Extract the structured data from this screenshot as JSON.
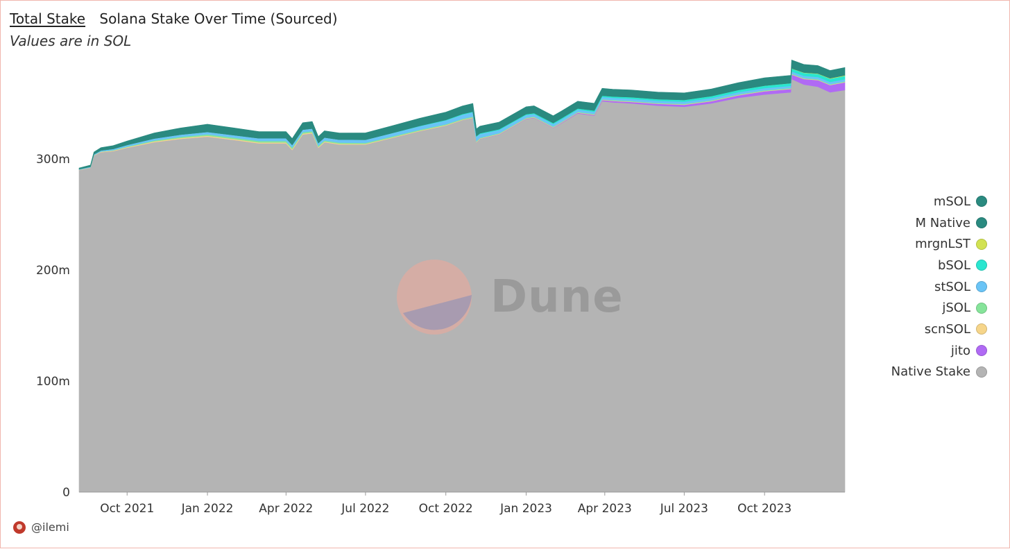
{
  "header": {
    "title": "Total Stake",
    "subtitle_inline": "Solana Stake Over Time (Sourced)",
    "note": "Values are in SOL"
  },
  "watermark": {
    "text": "Dune"
  },
  "footer": {
    "user": "@ilemi"
  },
  "chart_data": {
    "type": "area",
    "stacked": true,
    "ylim": [
      0,
      380
    ],
    "y_unit": "m SOL",
    "y_ticks": [
      0,
      100,
      200,
      300
    ],
    "y_tick_labels": [
      "0",
      "100m",
      "200m",
      "300m"
    ],
    "xlim": [
      "2021-08-07",
      "2024-01-01"
    ],
    "x_ticks": [
      "2021-10-01",
      "2022-01-01",
      "2022-04-01",
      "2022-07-01",
      "2022-10-01",
      "2023-01-01",
      "2023-04-01",
      "2023-07-01",
      "2023-10-01"
    ],
    "x_tick_labels": [
      "Oct 2021",
      "Jan 2022",
      "Apr 2022",
      "Jul 2022",
      "Oct 2022",
      "Jan 2023",
      "Apr 2023",
      "Jul 2023",
      "Oct 2023"
    ],
    "legend_position": "right",
    "x": [
      "2021-08-07",
      "2021-08-20",
      "2021-08-24",
      "2021-09-01",
      "2021-09-15",
      "2021-10-01",
      "2021-11-01",
      "2021-12-01",
      "2022-01-01",
      "2022-02-01",
      "2022-03-01",
      "2022-04-01",
      "2022-04-08",
      "2022-04-20",
      "2022-05-01",
      "2022-05-08",
      "2022-05-15",
      "2022-06-01",
      "2022-07-01",
      "2022-08-01",
      "2022-09-01",
      "2022-10-01",
      "2022-10-20",
      "2022-11-01",
      "2022-11-05",
      "2022-11-09",
      "2022-12-01",
      "2023-01-01",
      "2023-01-10",
      "2023-02-01",
      "2023-02-10",
      "2023-03-01",
      "2023-03-20",
      "2023-03-29",
      "2023-04-10",
      "2023-05-01",
      "2023-06-01",
      "2023-07-01",
      "2023-08-01",
      "2023-09-01",
      "2023-10-01",
      "2023-10-31",
      "2023-11-01",
      "2023-11-15",
      "2023-12-01",
      "2023-12-15",
      "2024-01-01"
    ],
    "series": [
      {
        "name": "Native Stake",
        "color": "#b4b4b4",
        "values": [
          290,
          292,
          303,
          306,
          307,
          310,
          315,
          318,
          320,
          317,
          314,
          314,
          308,
          322,
          323,
          310,
          315,
          313,
          313,
          319,
          325,
          330,
          335,
          337,
          315,
          318,
          322,
          336,
          337,
          328,
          332,
          341,
          339,
          352,
          351,
          350,
          348,
          347,
          350,
          355,
          358,
          360,
          372,
          367,
          365,
          360,
          362
        ]
      },
      {
        "name": "jito",
        "color": "#b06af4",
        "values": [
          0,
          0,
          0,
          0,
          0,
          0,
          0,
          0,
          0,
          0,
          0,
          0,
          0,
          0,
          0,
          0,
          0,
          0,
          0,
          0,
          0,
          0,
          0,
          0,
          0,
          0.1,
          0.2,
          0.3,
          0.3,
          0.4,
          0.5,
          0.6,
          0.7,
          1,
          1.2,
          1.4,
          1.6,
          1.8,
          2,
          2.3,
          3,
          3,
          4,
          5,
          6,
          6.5,
          7
        ]
      },
      {
        "name": "scnSOL",
        "color": "#f6d58a",
        "values": [
          0.3,
          0.3,
          0.4,
          0.5,
          0.5,
          0.6,
          0.8,
          0.9,
          0.9,
          0.9,
          0.9,
          0.9,
          0.9,
          0.8,
          0.8,
          0.8,
          0.7,
          0.7,
          0.6,
          0.5,
          0.5,
          0.5,
          0.4,
          0.4,
          0.4,
          0.4,
          0.4,
          0.3,
          0.3,
          0.3,
          0.3,
          0.3,
          0.3,
          0.3,
          0.3,
          0.3,
          0.3,
          0.3,
          0.3,
          0.3,
          0.3,
          0.3,
          0.3,
          0.3,
          0.3,
          0.3,
          0.3
        ]
      },
      {
        "name": "jSOL",
        "color": "#86e49a",
        "values": [
          0,
          0,
          0,
          0.2,
          0.3,
          0.5,
          0.8,
          1,
          1.2,
          1.2,
          1.3,
          1.3,
          1.3,
          1.2,
          1.2,
          1.1,
          1,
          1,
          0.9,
          0.8,
          0.8,
          0.7,
          0.7,
          0.7,
          0.6,
          0.5,
          0.5,
          0.5,
          0.5,
          0.5,
          0.5,
          0.5,
          0.5,
          0.5,
          0.5,
          0.5,
          0.5,
          0.5,
          0.5,
          0.5,
          0.5,
          0.5,
          0.5,
          0.5,
          0.5,
          0.5,
          0.5
        ]
      },
      {
        "name": "stSOL",
        "color": "#6ac4f6",
        "values": [
          0.5,
          0.7,
          0.8,
          1,
          1.2,
          1.5,
          1.8,
          2,
          2.2,
          2.3,
          2.4,
          2.4,
          2.4,
          2.4,
          2.4,
          2.5,
          2.6,
          2.7,
          2.8,
          3,
          3.2,
          3.5,
          3.8,
          4,
          4,
          3.5,
          3,
          2.5,
          2.4,
          2.3,
          2.2,
          2.1,
          2,
          2,
          2,
          2,
          2,
          2,
          2,
          2,
          2,
          2,
          2,
          2,
          2,
          2,
          2
        ]
      },
      {
        "name": "bSOL",
        "color": "#2ae6d0",
        "values": [
          0,
          0,
          0,
          0,
          0,
          0,
          0,
          0,
          0,
          0,
          0,
          0,
          0,
          0,
          0,
          0,
          0,
          0,
          0,
          0.2,
          0.3,
          0.5,
          0.6,
          0.6,
          0.6,
          0.6,
          0.7,
          0.8,
          0.8,
          0.9,
          1,
          1,
          1.1,
          1.2,
          1.3,
          1.4,
          1.5,
          1.6,
          1.8,
          2,
          2.2,
          2.4,
          2.6,
          2.7,
          2.8,
          2.9,
          3
        ]
      },
      {
        "name": "mrgnLST",
        "color": "#d2e252",
        "values": [
          0,
          0,
          0,
          0,
          0,
          0,
          0,
          0,
          0,
          0,
          0,
          0,
          0,
          0,
          0,
          0,
          0,
          0,
          0,
          0,
          0,
          0,
          0,
          0,
          0,
          0,
          0,
          0,
          0,
          0,
          0,
          0,
          0,
          0,
          0,
          0,
          0,
          0,
          0,
          0,
          0.05,
          0.1,
          0.2,
          0.3,
          0.4,
          0.5,
          0.6
        ]
      },
      {
        "name": "M Native",
        "color": "#2a8a80",
        "values": [
          0,
          0,
          0,
          0,
          0,
          0,
          0,
          0,
          0,
          0,
          0,
          0,
          0,
          0,
          0,
          0,
          0,
          0,
          0,
          0,
          0,
          0,
          0,
          0,
          0,
          0,
          0,
          0,
          0,
          0,
          0,
          0,
          0,
          0,
          0,
          0,
          0,
          0,
          0,
          0,
          0,
          0,
          0,
          0,
          0,
          0,
          0
        ]
      },
      {
        "name": "mSOL",
        "color": "#2a8a80",
        "values": [
          1,
          1.5,
          2,
          2.5,
          3,
          3.5,
          5,
          6,
          7,
          6.5,
          6,
          6,
          5.8,
          6.2,
          6.3,
          5.8,
          6,
          6,
          6.2,
          6.5,
          6.8,
          7,
          7.2,
          7.3,
          6.5,
          6.4,
          6.4,
          6.6,
          6.6,
          6.5,
          6.5,
          6.5,
          6.5,
          6.6,
          6.5,
          6.5,
          6.3,
          6.3,
          6.4,
          6.6,
          7,
          7,
          7.5,
          7.3,
          7.1,
          7,
          7
        ]
      }
    ]
  }
}
